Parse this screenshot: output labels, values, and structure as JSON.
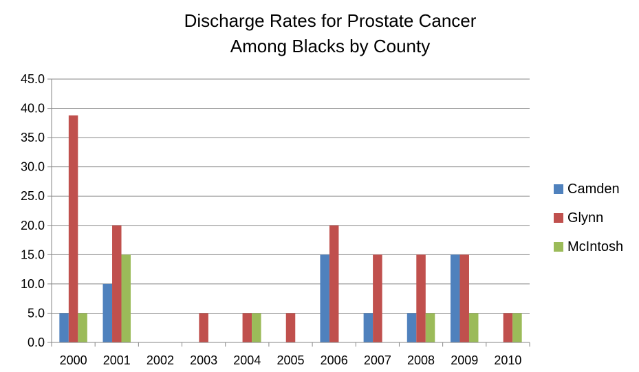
{
  "chart_data": {
    "type": "bar",
    "title": [
      "Discharge Rates for Prostate Cancer",
      "Among Blacks by County"
    ],
    "xlabel": "",
    "ylabel": "",
    "categories": [
      "2000",
      "2001",
      "2002",
      "2003",
      "2004",
      "2005",
      "2006",
      "2007",
      "2008",
      "2009",
      "2010"
    ],
    "series": [
      {
        "name": "Camden",
        "color": "#4F81BD",
        "values": [
          5,
          10,
          0,
          0,
          0,
          0,
          15,
          5,
          5,
          15,
          0
        ]
      },
      {
        "name": "Glynn",
        "color": "#C0504D",
        "values": [
          38.8,
          20,
          0,
          5,
          5,
          5,
          20,
          15,
          15,
          15,
          5
        ]
      },
      {
        "name": "McIntosh",
        "color": "#9BBB59",
        "values": [
          5,
          15,
          0,
          0,
          5,
          0,
          0,
          0,
          5,
          5,
          5
        ]
      }
    ],
    "ylim": [
      0,
      45
    ],
    "yticks": [
      "0.0",
      "5.0",
      "10.0",
      "15.0",
      "20.0",
      "25.0",
      "30.0",
      "35.0",
      "40.0",
      "45.0"
    ],
    "grid": true,
    "legend_position": "right"
  }
}
